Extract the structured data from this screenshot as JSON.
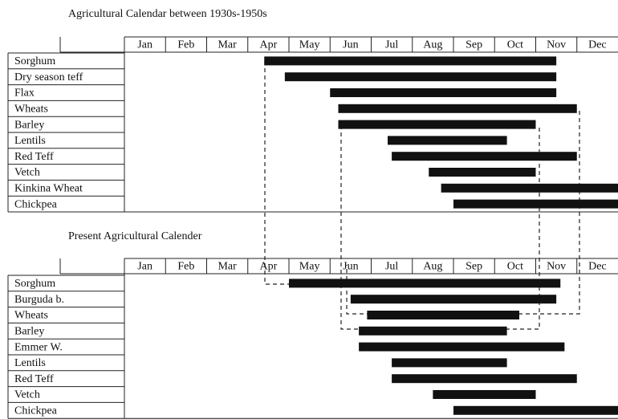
{
  "chart_data": [
    {
      "type": "gantt",
      "title": "Agricultural Calendar between 1930s-1950s",
      "categories": [
        "Jan",
        "Feb",
        "Mar",
        "Apr",
        "May",
        "Jun",
        "Jul",
        "Aug",
        "Sep",
        "Oct",
        "Nov",
        "Dec"
      ],
      "xlim": [
        0,
        12
      ],
      "color": "#111111",
      "tasks": [
        "Sorghum",
        "Dry season teff",
        "Flax",
        "Wheats",
        "Barley",
        "Lentils",
        "Red Teff",
        "Vetch",
        "Kinkina Wheat",
        "Chickpea"
      ],
      "start": [
        3.4,
        3.9,
        5.0,
        5.2,
        5.2,
        6.4,
        6.5,
        7.4,
        7.7,
        8.0
      ],
      "end": [
        10.5,
        10.5,
        10.5,
        11.0,
        10.0,
        9.3,
        11.0,
        10.0,
        12.0,
        12.0
      ]
    },
    {
      "type": "gantt",
      "title": "Present Agricultural Calender",
      "categories": [
        "Jan",
        "Feb",
        "Mar",
        "Apr",
        "May",
        "Jun",
        "Jul",
        "Aug",
        "Sep",
        "Oct",
        "Nov",
        "Dec"
      ],
      "xlim": [
        0,
        12
      ],
      "color": "#111111",
      "tasks": [
        "Sorghum",
        "Burguda b.",
        "Wheats",
        "Barley",
        "Emmer W.",
        "Lentils",
        "Red Teff",
        "Vetch",
        "Chickpea"
      ],
      "start": [
        4.0,
        5.5,
        5.9,
        5.7,
        5.7,
        6.5,
        6.5,
        7.5,
        8.0
      ],
      "end": [
        10.6,
        10.5,
        9.6,
        9.3,
        10.7,
        9.3,
        11.0,
        10.0,
        12.0
      ]
    }
  ]
}
